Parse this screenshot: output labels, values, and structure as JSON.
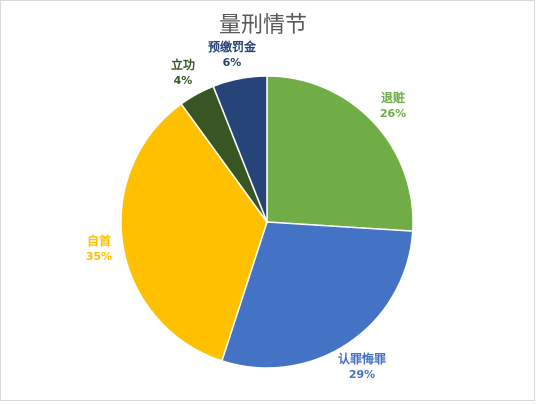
{
  "chart_data": {
    "type": "pie",
    "title": "量刑情节",
    "categories": [
      "退赃",
      "认罪悔罪",
      "自首",
      "立功",
      "预缴罚金"
    ],
    "values": [
      26,
      29,
      35,
      4,
      6
    ],
    "data_labels": [
      "26%",
      "29%",
      "35%",
      "4%",
      "6%"
    ],
    "colors": [
      "#70ad47",
      "#4472c4",
      "#ffc000",
      "#375623",
      "#264478"
    ],
    "label_colors": [
      "#70ad47",
      "#4472c4",
      "#ffc000",
      "#375623",
      "#264478"
    ],
    "start_angle_deg": 0,
    "direction": "clockwise",
    "legend": "none"
  }
}
